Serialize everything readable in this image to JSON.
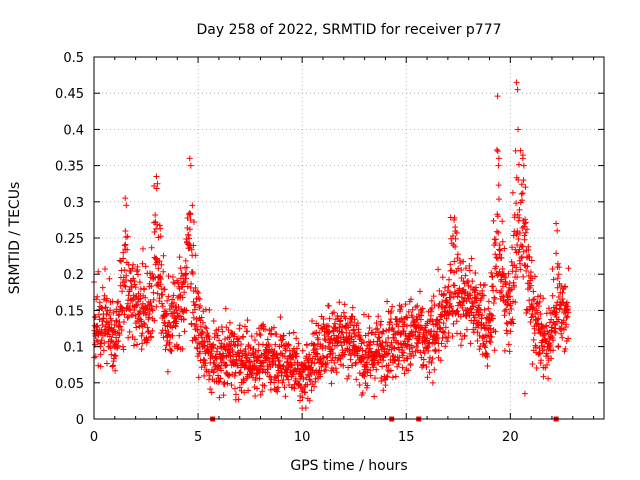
{
  "chart_data": {
    "type": "scatter",
    "title": "Day 258 of 2022, SRMTID for receiver p777",
    "xlabel": "GPS time / hours",
    "ylabel": "SRMTID / TECUs",
    "xlim": [
      0,
      24.5
    ],
    "ylim": [
      0,
      0.5
    ],
    "x_ticks": [
      0,
      5,
      10,
      15,
      20
    ],
    "x_tick_labels": [
      "0",
      "5",
      "10",
      "15",
      "20"
    ],
    "y_ticks": [
      0,
      0.05,
      0.1,
      0.15,
      0.2,
      0.25,
      0.3,
      0.35,
      0.4,
      0.45,
      0.5
    ],
    "y_tick_labels": [
      "0",
      "0.05",
      "0.1",
      "0.15",
      "0.2",
      "0.25",
      "0.3",
      "0.35",
      "0.4",
      "0.45",
      "0.5"
    ],
    "grid": true,
    "marker": "+",
    "color": "#ff0000",
    "zero_markers_x": [
      5.7,
      14.3,
      15.6,
      22.2
    ],
    "series_envelope": {
      "description": "approximate mean level of the point cloud, hours vs TECU",
      "x": [
        0,
        0.5,
        1,
        1.5,
        2,
        2.5,
        3,
        3.5,
        4,
        4.5,
        5,
        5.5,
        6,
        6.5,
        7,
        7.5,
        8,
        8.5,
        9,
        9.5,
        10,
        10.5,
        11,
        11.5,
        12,
        12.5,
        13,
        13.5,
        14,
        14.5,
        15,
        15.5,
        16,
        16.5,
        17,
        17.5,
        18,
        18.5,
        19,
        19.5,
        20,
        20.5,
        21,
        21.5,
        22,
        22.5,
        22.8
      ],
      "y": [
        0.12,
        0.14,
        0.1,
        0.15,
        0.17,
        0.15,
        0.16,
        0.13,
        0.15,
        0.17,
        0.12,
        0.09,
        0.08,
        0.09,
        0.08,
        0.08,
        0.085,
        0.09,
        0.08,
        0.08,
        0.06,
        0.08,
        0.1,
        0.11,
        0.12,
        0.11,
        0.08,
        0.09,
        0.1,
        0.12,
        0.11,
        0.12,
        0.1,
        0.13,
        0.14,
        0.16,
        0.17,
        0.14,
        0.12,
        0.18,
        0.14,
        0.2,
        0.16,
        0.11,
        0.1,
        0.15,
        0.15
      ]
    },
    "peaks": [
      {
        "x": 3.0,
        "y": 0.335
      },
      {
        "x": 4.6,
        "y": 0.36
      },
      {
        "x": 19.4,
        "y": 0.37
      },
      {
        "x": 20.3,
        "y": 0.465
      },
      {
        "x": 20.6,
        "y": 0.36
      },
      {
        "x": 1.5,
        "y": 0.305
      },
      {
        "x": 17.3,
        "y": 0.275
      },
      {
        "x": 22.2,
        "y": 0.27
      }
    ],
    "minima": [
      {
        "x": 10.0,
        "y": 0.015
      },
      {
        "x": 20.7,
        "y": 0.035
      }
    ],
    "point_count": 2400,
    "data_x_range": [
      0,
      22.8
    ]
  }
}
